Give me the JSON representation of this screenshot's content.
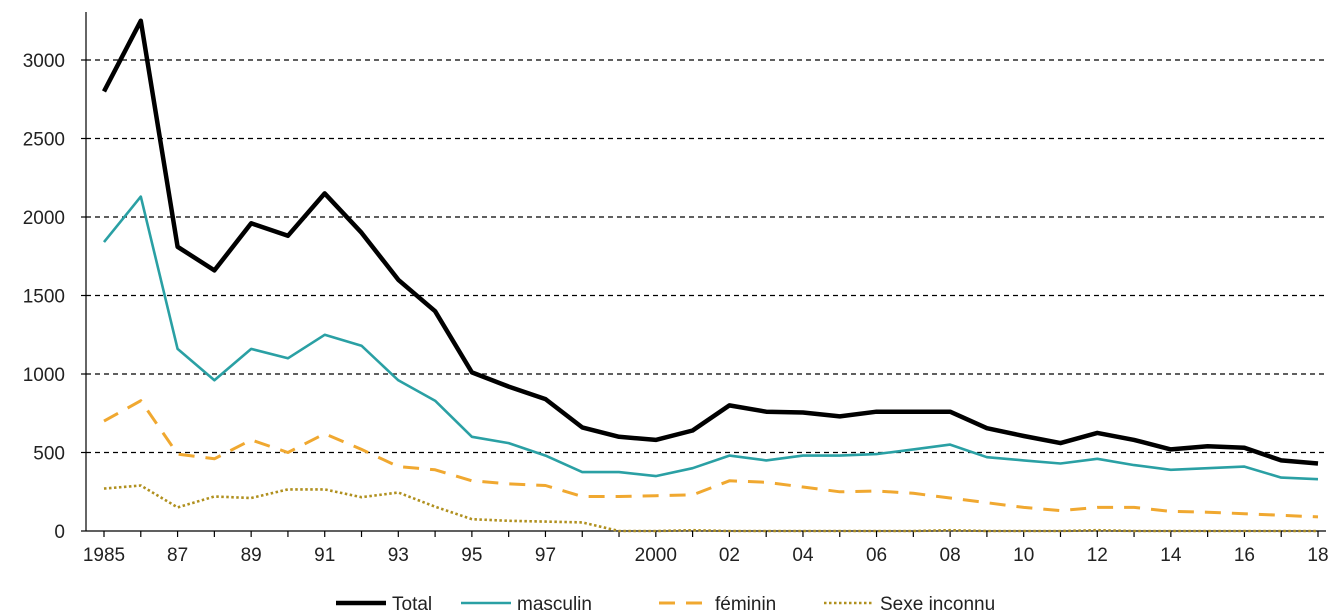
{
  "chart_data": {
    "type": "line",
    "title": "",
    "xlabel": "",
    "ylabel": "",
    "x": [
      1985,
      1986,
      1987,
      1988,
      1989,
      1990,
      1991,
      1992,
      1993,
      1994,
      1995,
      1996,
      1997,
      1998,
      1999,
      2000,
      2001,
      2002,
      2003,
      2004,
      2005,
      2006,
      2007,
      2008,
      2009,
      2010,
      2011,
      2012,
      2013,
      2014,
      2015,
      2016,
      2017,
      2018
    ],
    "xlim": [
      1985,
      2018
    ],
    "ylim": [
      0,
      3000
    ],
    "yticks": [
      0,
      500,
      1000,
      1500,
      2000,
      2500,
      3000
    ],
    "ytick_labels": [
      "0",
      "500",
      "1000",
      "1500",
      "2000",
      "2500",
      "3000"
    ],
    "xticks": [
      1985,
      1987,
      1989,
      1991,
      1993,
      1995,
      1997,
      2000,
      2002,
      2004,
      2006,
      2008,
      2010,
      2012,
      2014,
      2016,
      2018
    ],
    "xtick_labels": [
      "1985",
      "87",
      "89",
      "91",
      "93",
      "95",
      "97",
      "2000",
      "02",
      "04",
      "06",
      "08",
      "10",
      "12",
      "14",
      "16",
      "18"
    ],
    "grid": "horizontal dashed",
    "legend_position": "bottom",
    "series": [
      {
        "name": "Total",
        "color": "#000000",
        "style": "solid",
        "values": [
          2800,
          3250,
          1810,
          1660,
          1960,
          1880,
          2150,
          1900,
          1600,
          1400,
          1010,
          920,
          840,
          660,
          600,
          580,
          640,
          800,
          760,
          755,
          730,
          760,
          760,
          760,
          655,
          605,
          560,
          625,
          580,
          520,
          540,
          530,
          450,
          430
        ]
      },
      {
        "name": "masculin",
        "color": "#2aa0a4",
        "style": "solid",
        "values": [
          1840,
          2130,
          1160,
          960,
          1160,
          1100,
          1250,
          1180,
          960,
          830,
          600,
          560,
          480,
          375,
          375,
          350,
          400,
          480,
          450,
          480,
          480,
          490,
          520,
          550,
          470,
          450,
          430,
          460,
          420,
          390,
          400,
          410,
          340,
          330
        ]
      },
      {
        "name": "féminin",
        "color": "#f0a830",
        "style": "dashed",
        "values": [
          700,
          830,
          490,
          460,
          580,
          500,
          620,
          520,
          410,
          390,
          320,
          300,
          290,
          220,
          220,
          225,
          230,
          320,
          310,
          280,
          250,
          255,
          240,
          210,
          180,
          150,
          130,
          150,
          150,
          125,
          120,
          110,
          100,
          90
        ]
      },
      {
        "name": "Sexe inconnu",
        "color": "#b0901e",
        "style": "dotted",
        "values": [
          270,
          290,
          150,
          220,
          210,
          265,
          265,
          215,
          245,
          155,
          75,
          65,
          60,
          55,
          0,
          0,
          5,
          0,
          0,
          0,
          0,
          0,
          0,
          5,
          0,
          0,
          0,
          5,
          0,
          0,
          0,
          0,
          0,
          0
        ]
      }
    ]
  }
}
